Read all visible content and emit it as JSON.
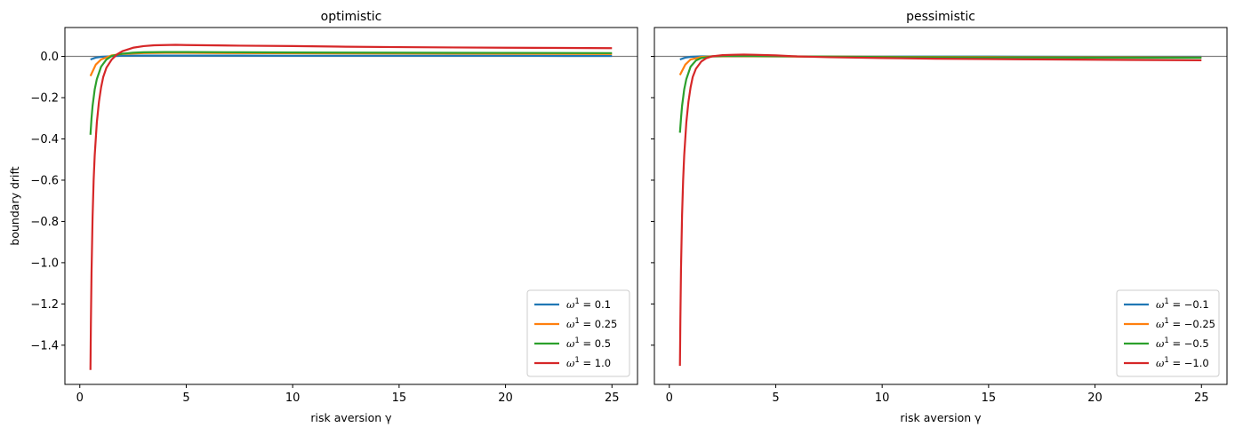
{
  "chart_data": [
    {
      "type": "line",
      "title": "optimistic",
      "xlabel": "risk aversion γ",
      "ylabel": "boundary drift",
      "xlim": [
        -0.7,
        26.2
      ],
      "ylim": [
        -1.59,
        0.14
      ],
      "xticks": [
        0,
        5,
        10,
        15,
        20,
        25
      ],
      "yticks": [
        0.0,
        -0.2,
        -0.4,
        -0.6,
        -0.8,
        -1.0,
        -1.2,
        -1.4
      ],
      "ytick_labels": [
        "0.0",
        "−0.2",
        "−0.4",
        "−0.6",
        "−0.8",
        "−1.0",
        "−1.2",
        "−1.4"
      ],
      "xtick_labels": [
        "0",
        "5",
        "10",
        "15",
        "20",
        "25"
      ],
      "hline": 0,
      "legend_position": "lower-right",
      "series": [
        {
          "name": "ω¹ = 0.1",
          "color": "#1f77b4",
          "x": [
            0.5,
            0.75,
            1.0,
            1.5,
            2.0,
            3.0,
            4.0,
            5.0,
            7.5,
            10,
            15,
            20,
            25
          ],
          "y": [
            -0.015,
            -0.006,
            -0.002,
            0.001,
            0.003,
            0.004,
            0.004,
            0.004,
            0.004,
            0.003,
            0.003,
            0.003,
            0.002
          ]
        },
        {
          "name": "ω¹ = 0.25",
          "color": "#ff7f0e",
          "x": [
            0.5,
            0.75,
            1.0,
            1.5,
            2.0,
            3.0,
            4.0,
            5.0,
            7.5,
            10,
            15,
            20,
            25
          ],
          "y": [
            -0.095,
            -0.04,
            -0.015,
            0.005,
            0.012,
            0.016,
            0.017,
            0.017,
            0.016,
            0.015,
            0.014,
            0.013,
            0.012
          ]
        },
        {
          "name": "ω¹ = 0.5",
          "color": "#2ca02c",
          "x": [
            0.5,
            0.55,
            0.6,
            0.7,
            0.8,
            1.0,
            1.25,
            1.5,
            2.0,
            2.5,
            3.0,
            4.0,
            5.0,
            7.5,
            10,
            15,
            20,
            25
          ],
          "y": [
            -0.38,
            -0.3,
            -0.24,
            -0.16,
            -0.11,
            -0.05,
            -0.015,
            0.002,
            0.013,
            0.018,
            0.02,
            0.021,
            0.021,
            0.02,
            0.019,
            0.018,
            0.017,
            0.016
          ]
        },
        {
          "name": "ω¹ = 1.0",
          "color": "#d62728",
          "x": [
            0.5,
            0.52,
            0.55,
            0.6,
            0.65,
            0.7,
            0.8,
            0.9,
            1.0,
            1.1,
            1.25,
            1.5,
            1.75,
            2.0,
            2.5,
            3.0,
            3.5,
            4.0,
            4.5,
            5.0,
            6.0,
            7.5,
            10,
            12.5,
            15,
            20,
            25
          ],
          "y": [
            -1.52,
            -1.3,
            -1.05,
            -0.78,
            -0.6,
            -0.48,
            -0.32,
            -0.22,
            -0.15,
            -0.1,
            -0.055,
            -0.015,
            0.01,
            0.025,
            0.042,
            0.05,
            0.054,
            0.055,
            0.056,
            0.055,
            0.054,
            0.052,
            0.05,
            0.047,
            0.045,
            0.042,
            0.04
          ]
        }
      ],
      "legend": [
        "ω¹ = 0.1",
        "ω¹ = 0.25",
        "ω¹ = 0.5",
        "ω¹ = 1.0"
      ]
    },
    {
      "type": "line",
      "title": "pessimistic",
      "xlabel": "risk aversion γ",
      "ylabel": "",
      "xlim": [
        -0.7,
        26.2
      ],
      "ylim": [
        -1.59,
        0.14
      ],
      "xticks": [
        0,
        5,
        10,
        15,
        20,
        25
      ],
      "xtick_labels": [
        "0",
        "5",
        "10",
        "15",
        "20",
        "25"
      ],
      "hline": 0,
      "legend_position": "lower-right",
      "series": [
        {
          "name": "ω¹ = −0.1",
          "color": "#1f77b4",
          "x": [
            0.5,
            0.75,
            1.0,
            1.5,
            2.0,
            3.0,
            5.0,
            10,
            15,
            20,
            25
          ],
          "y": [
            -0.015,
            -0.006,
            -0.002,
            0.0,
            0.0,
            0.0,
            0.0,
            -0.001,
            -0.001,
            -0.002,
            -0.002
          ]
        },
        {
          "name": "ω¹ = −0.25",
          "color": "#ff7f0e",
          "x": [
            0.5,
            0.75,
            1.0,
            1.5,
            2.0,
            3.0,
            5.0,
            10,
            15,
            20,
            25
          ],
          "y": [
            -0.09,
            -0.04,
            -0.015,
            -0.003,
            0.0,
            0.001,
            0.0,
            -0.002,
            -0.003,
            -0.004,
            -0.005
          ]
        },
        {
          "name": "ω¹ = −0.5",
          "color": "#2ca02c",
          "x": [
            0.5,
            0.55,
            0.6,
            0.7,
            0.8,
            1.0,
            1.25,
            1.5,
            2.0,
            2.5,
            3.0,
            4.0,
            5.0,
            7.5,
            10,
            15,
            20,
            25
          ],
          "y": [
            -0.37,
            -0.3,
            -0.24,
            -0.16,
            -0.11,
            -0.05,
            -0.02,
            -0.008,
            0.0,
            0.002,
            0.003,
            0.002,
            0.001,
            -0.001,
            -0.003,
            -0.005,
            -0.006,
            -0.007
          ]
        },
        {
          "name": "ω¹ = −1.0",
          "color": "#d62728",
          "x": [
            0.5,
            0.52,
            0.55,
            0.6,
            0.65,
            0.7,
            0.8,
            0.9,
            1.0,
            1.1,
            1.25,
            1.5,
            1.75,
            2.0,
            2.5,
            3.0,
            3.5,
            4.0,
            5.0,
            6.0,
            7.5,
            10,
            12.5,
            15,
            20,
            25
          ],
          "y": [
            -1.5,
            -1.28,
            -1.03,
            -0.77,
            -0.6,
            -0.48,
            -0.32,
            -0.22,
            -0.15,
            -0.1,
            -0.06,
            -0.025,
            -0.008,
            0.0,
            0.006,
            0.008,
            0.009,
            0.008,
            0.005,
            0.0,
            -0.004,
            -0.008,
            -0.011,
            -0.013,
            -0.016,
            -0.019
          ]
        }
      ],
      "legend": [
        "ω¹ = −0.1",
        "ω¹ = −0.25",
        "ω¹ = −0.5",
        "ω¹ = −1.0"
      ]
    }
  ]
}
